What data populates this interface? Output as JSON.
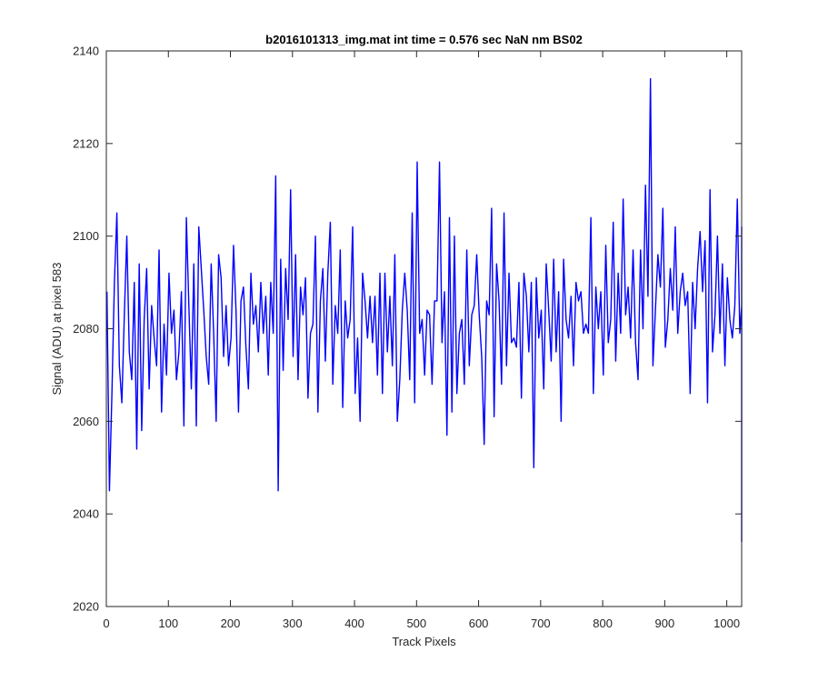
{
  "chart_data": {
    "type": "line",
    "title": "b2016101313_img.mat int time = 0.576 sec  NaN nm BS02",
    "xlabel": "Track Pixels",
    "ylabel": "Signal (ADU) at pixel 583",
    "xlim": [
      0,
      1024
    ],
    "ylim": [
      2020,
      2140
    ],
    "xticks": [
      0,
      100,
      200,
      300,
      400,
      500,
      600,
      700,
      800,
      900,
      1000
    ],
    "yticks": [
      2020,
      2040,
      2060,
      2080,
      2100,
      2120,
      2140
    ],
    "grid": false,
    "line_color": "#0000ff",
    "axes_color": "#262626",
    "series": [
      {
        "x_start": 1,
        "x_step": 4,
        "values": [
          2088,
          2045,
          2066,
          2090,
          2105,
          2072,
          2064,
          2083,
          2100,
          2075,
          2069,
          2090,
          2054,
          2094,
          2058,
          2082,
          2093,
          2067,
          2085,
          2078,
          2072,
          2097,
          2062,
          2081,
          2070,
          2092,
          2079,
          2084,
          2069,
          2075,
          2088,
          2059,
          2104,
          2085,
          2067,
          2094,
          2059,
          2102,
          2093,
          2084,
          2074,
          2068,
          2094,
          2079,
          2060,
          2096,
          2091,
          2074,
          2085,
          2072,
          2078,
          2098,
          2084,
          2062,
          2086,
          2089,
          2076,
          2067,
          2092,
          2081,
          2085,
          2075,
          2090,
          2079,
          2087,
          2070,
          2090,
          2079,
          2113,
          2045,
          2095,
          2071,
          2093,
          2082,
          2110,
          2074,
          2096,
          2069,
          2089,
          2083,
          2091,
          2065,
          2079,
          2081,
          2100,
          2062,
          2086,
          2093,
          2073,
          2092,
          2103,
          2068,
          2085,
          2079,
          2097,
          2063,
          2086,
          2078,
          2082,
          2102,
          2066,
          2078,
          2060,
          2092,
          2086,
          2078,
          2087,
          2077,
          2087,
          2070,
          2092,
          2066,
          2092,
          2075,
          2087,
          2072,
          2096,
          2060,
          2069,
          2084,
          2092,
          2084,
          2069,
          2105,
          2064,
          2116,
          2079,
          2082,
          2070,
          2084,
          2083,
          2068,
          2086,
          2086,
          2116,
          2077,
          2088,
          2057,
          2104,
          2062,
          2100,
          2066,
          2079,
          2082,
          2068,
          2097,
          2072,
          2083,
          2085,
          2096,
          2083,
          2074,
          2055,
          2086,
          2083,
          2106,
          2061,
          2094,
          2086,
          2068,
          2105,
          2072,
          2092,
          2077,
          2078,
          2076,
          2090,
          2065,
          2092,
          2087,
          2075,
          2090,
          2050,
          2091,
          2078,
          2084,
          2067,
          2094,
          2084,
          2073,
          2095,
          2075,
          2088,
          2060,
          2095,
          2082,
          2078,
          2087,
          2072,
          2090,
          2086,
          2088,
          2079,
          2081,
          2079,
          2104,
          2066,
          2089,
          2080,
          2088,
          2070,
          2098,
          2077,
          2082,
          2103,
          2073,
          2092,
          2079,
          2108,
          2083,
          2089,
          2078,
          2097,
          2077,
          2069,
          2097,
          2080,
          2111,
          2087,
          2134,
          2072,
          2084,
          2096,
          2089,
          2106,
          2076,
          2082,
          2093,
          2084,
          2102,
          2079,
          2088,
          2092,
          2085,
          2088,
          2066,
          2090,
          2080,
          2093,
          2101,
          2088,
          2099,
          2064,
          2110,
          2075,
          2083,
          2100,
          2079,
          2094,
          2072,
          2091,
          2082,
          2078,
          2085,
          2108,
          2079,
          2085,
          2089,
          2062,
          2096,
          2072,
          2091,
          2088,
          2054,
          2090,
          2087,
          2094,
          2089,
          2063,
          2095,
          2082,
          2083,
          2097,
          2065,
          2085,
          2095,
          2074,
          2088,
          2073,
          2082,
          2077,
          2091,
          2060,
          2084,
          2083,
          2090,
          2101,
          2067,
          2078,
          2093,
          2079,
          2074,
          2084,
          2066,
          2094,
          2087,
          2072,
          2082,
          2091,
          2071,
          2084,
          2073,
          2086,
          2102,
          2080,
          2091,
          2074,
          2091,
          2083,
          2093,
          2075,
          2088,
          2060,
          2097,
          2080,
          2070,
          2089,
          2076,
          2085,
          2088,
          2078,
          2083,
          2067,
          2088,
          2080,
          2092,
          2069,
          2085,
          2077,
          2090,
          2066,
          2083,
          2075,
          2089,
          2079,
          2086,
          2088,
          2085,
          2061,
          2078,
          2065,
          2087,
          2071,
          2079,
          2086,
          2075,
          2080,
          2084,
          2072,
          2076,
          2069,
          2080,
          2063,
          2074,
          2071,
          2082,
          2057,
          2067,
          2067,
          2068,
          2069,
          2076,
          2061,
          2093,
          2073,
          2063,
          2087,
          2081,
          2051,
          2073,
          2068,
          2062,
          2065,
          2034,
          2078,
          2066,
          2087,
          2076,
          2065,
          2073,
          2069,
          2077,
          2082,
          2063,
          2070,
          2064,
          2067,
          2065,
          2062,
          2088,
          2055,
          2060,
          2065,
          2073,
          2060,
          2078,
          2046,
          2058,
          2069,
          2085,
          2048,
          2067,
          2070,
          2062,
          2089,
          2043,
          2092,
          2060,
          2081,
          2059,
          2078,
          2065,
          2080,
          2064,
          2069,
          2074,
          2058,
          2069,
          2060,
          2073,
          2056,
          2063,
          2080,
          2070,
          2060,
          2061,
          2073,
          2047,
          2070,
          2076,
          2060,
          2084,
          2068,
          2086,
          2061,
          2039,
          2080,
          2064,
          2079,
          2059,
          2070,
          2099,
          2063,
          2068,
          2055,
          2072,
          2056
        ]
      }
    ]
  }
}
